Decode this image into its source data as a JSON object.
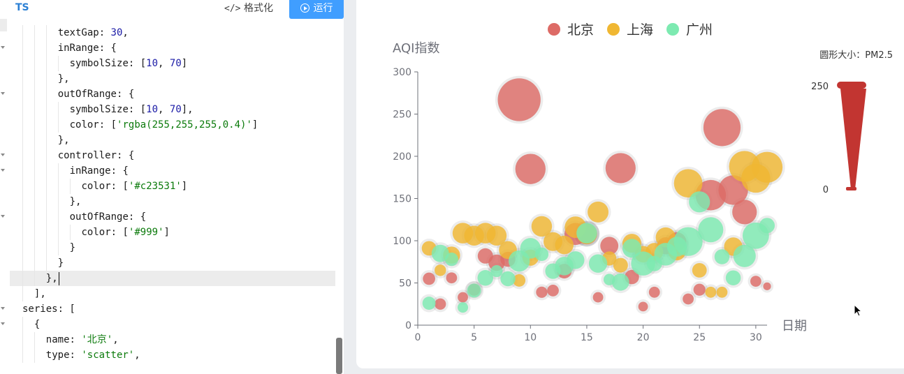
{
  "editor": {
    "language_label": "TS",
    "format_button": "格式化",
    "format_icon": "code-brackets-icon",
    "run_button": "运行",
    "run_icon": "play-circle-icon",
    "lines": [
      {
        "indent": 2,
        "fold": false,
        "tokens": [
          [
            "k",
            "textGap: "
          ],
          [
            "n",
            "30"
          ],
          [
            "k",
            ","
          ]
        ]
      },
      {
        "indent": 2,
        "fold": true,
        "tokens": [
          [
            "k",
            "inRange: {"
          ]
        ]
      },
      {
        "indent": 3,
        "fold": false,
        "tokens": [
          [
            "k",
            "symbolSize: ["
          ],
          [
            "n",
            "10"
          ],
          [
            "k",
            ", "
          ],
          [
            "n",
            "70"
          ],
          [
            "k",
            "]"
          ]
        ]
      },
      {
        "indent": 2,
        "fold": false,
        "tokens": [
          [
            "k",
            "},"
          ]
        ]
      },
      {
        "indent": 2,
        "fold": true,
        "tokens": [
          [
            "k",
            "outOfRange: {"
          ]
        ]
      },
      {
        "indent": 3,
        "fold": false,
        "tokens": [
          [
            "k",
            "symbolSize: ["
          ],
          [
            "n",
            "10"
          ],
          [
            "k",
            ", "
          ],
          [
            "n",
            "70"
          ],
          [
            "k",
            "],"
          ]
        ]
      },
      {
        "indent": 3,
        "fold": false,
        "tokens": [
          [
            "k",
            "color: ["
          ],
          [
            "s",
            "'rgba(255,255,255,0.4)'"
          ],
          [
            "k",
            "]"
          ]
        ]
      },
      {
        "indent": 2,
        "fold": false,
        "tokens": [
          [
            "k",
            "},"
          ]
        ]
      },
      {
        "indent": 2,
        "fold": true,
        "tokens": [
          [
            "k",
            "controller: {"
          ]
        ]
      },
      {
        "indent": 3,
        "fold": true,
        "tokens": [
          [
            "k",
            "inRange: {"
          ]
        ]
      },
      {
        "indent": 4,
        "fold": false,
        "tokens": [
          [
            "k",
            "color: ["
          ],
          [
            "s",
            "'#c23531'"
          ],
          [
            "k",
            "]"
          ]
        ]
      },
      {
        "indent": 3,
        "fold": false,
        "tokens": [
          [
            "k",
            "},"
          ]
        ]
      },
      {
        "indent": 3,
        "fold": true,
        "tokens": [
          [
            "k",
            "outOfRange: {"
          ]
        ]
      },
      {
        "indent": 4,
        "fold": false,
        "tokens": [
          [
            "k",
            "color: ["
          ],
          [
            "s",
            "'#999'"
          ],
          [
            "k",
            "]"
          ]
        ]
      },
      {
        "indent": 3,
        "fold": false,
        "tokens": [
          [
            "k",
            "}"
          ]
        ]
      },
      {
        "indent": 2,
        "fold": false,
        "tokens": [
          [
            "k",
            "}"
          ]
        ]
      },
      {
        "indent": 1,
        "fold": false,
        "active": true,
        "tokens": [
          [
            "k",
            "},"
          ]
        ]
      },
      {
        "indent": 0,
        "fold": false,
        "tokens": [
          [
            "k",
            "],"
          ]
        ]
      },
      {
        "indent": -1,
        "fold": true,
        "tokens": [
          [
            "k",
            "series: ["
          ]
        ]
      },
      {
        "indent": 0,
        "fold": true,
        "tokens": [
          [
            "k",
            "{"
          ]
        ]
      },
      {
        "indent": 1,
        "fold": false,
        "tokens": [
          [
            "k",
            "name: "
          ],
          [
            "s",
            "'北京'"
          ],
          [
            "k",
            ","
          ]
        ]
      },
      {
        "indent": 1,
        "fold": false,
        "tokens": [
          [
            "k",
            "type: "
          ],
          [
            "s",
            "'scatter'"
          ],
          [
            "k",
            ","
          ]
        ]
      }
    ]
  },
  "chart_data": {
    "type": "scatter",
    "title": "",
    "xlabel": "日期",
    "ylabel": "AQI指数",
    "xlim": [
      0,
      31
    ],
    "ylim": [
      0,
      300
    ],
    "xticks": [
      0,
      5,
      10,
      15,
      20,
      25,
      30
    ],
    "yticks": [
      0,
      50,
      100,
      150,
      200,
      250,
      300
    ],
    "legend_position": "top-center",
    "visual_map": {
      "label": "圆形大小：PM2.5",
      "max_label": "250",
      "min_label": "0",
      "color": "#c23531",
      "range": [
        0,
        250
      ]
    },
    "series": [
      {
        "name": "北京",
        "color": "#dd6b66",
        "points": [
          [
            1,
            55,
            32
          ],
          [
            2,
            25,
            26
          ],
          [
            3,
            56,
            24
          ],
          [
            4,
            33,
            20
          ],
          [
            5,
            42,
            30
          ],
          [
            6,
            82,
            50
          ],
          [
            7,
            74,
            56
          ],
          [
            8,
            78,
            48
          ],
          [
            9,
            267,
            214
          ],
          [
            10,
            185,
            139
          ],
          [
            11,
            39,
            26
          ],
          [
            12,
            41,
            28
          ],
          [
            13,
            64,
            46
          ],
          [
            14,
            108,
            90
          ],
          [
            15,
            108,
            82
          ],
          [
            16,
            33,
            20
          ],
          [
            17,
            94,
            66
          ],
          [
            18,
            186,
            138
          ],
          [
            19,
            57,
            44
          ],
          [
            20,
            22,
            16
          ],
          [
            21,
            39,
            24
          ],
          [
            22,
            94,
            60
          ],
          [
            23,
            99,
            70
          ],
          [
            24,
            31,
            24
          ],
          [
            25,
            42,
            30
          ],
          [
            26,
            154,
            140
          ],
          [
            27,
            234,
            180
          ],
          [
            28,
            160,
            135
          ],
          [
            29,
            134,
            105
          ],
          [
            30,
            52,
            24
          ],
          [
            31,
            46,
            5
          ]
        ]
      },
      {
        "name": "上海",
        "color": "#f0b732",
        "points": [
          [
            1,
            91,
            45
          ],
          [
            2,
            65,
            27
          ],
          [
            3,
            83,
            60
          ],
          [
            4,
            109,
            81
          ],
          [
            5,
            106,
            77
          ],
          [
            6,
            109,
            81
          ],
          [
            7,
            106,
            77
          ],
          [
            8,
            89,
            65
          ],
          [
            9,
            53,
            33
          ],
          [
            10,
            80,
            55
          ],
          [
            11,
            117,
            81
          ],
          [
            12,
            99,
            71
          ],
          [
            13,
            95,
            69
          ],
          [
            14,
            116,
            87
          ],
          [
            15,
            108,
            80
          ],
          [
            16,
            134,
            83
          ],
          [
            17,
            79,
            43
          ],
          [
            18,
            71,
            46
          ],
          [
            19,
            97,
            71
          ],
          [
            20,
            84,
            57
          ],
          [
            21,
            87,
            63
          ],
          [
            22,
            104,
            77
          ],
          [
            23,
            87,
            62
          ],
          [
            24,
            168,
            128
          ],
          [
            25,
            65,
            45
          ],
          [
            26,
            39,
            24
          ],
          [
            27,
            39,
            24
          ],
          [
            28,
            93,
            68
          ],
          [
            29,
            188,
            143
          ],
          [
            30,
            174,
            131
          ],
          [
            31,
            187,
            143
          ]
        ]
      },
      {
        "name": "广州",
        "color": "#7deab1",
        "points": [
          [
            1,
            26,
            37
          ],
          [
            2,
            85,
            62
          ],
          [
            3,
            78,
            38
          ],
          [
            4,
            21,
            21
          ],
          [
            5,
            41,
            42
          ],
          [
            6,
            56,
            52
          ],
          [
            7,
            64,
            30
          ],
          [
            8,
            55,
            48
          ],
          [
            9,
            76,
            85
          ],
          [
            10,
            91,
            81
          ],
          [
            11,
            84,
            39
          ],
          [
            12,
            64,
            51
          ],
          [
            13,
            70,
            69
          ],
          [
            14,
            77,
            64
          ],
          [
            15,
            109,
            81
          ],
          [
            16,
            73,
            68
          ],
          [
            17,
            54,
            27
          ],
          [
            18,
            51,
            61
          ],
          [
            19,
            91,
            71
          ],
          [
            20,
            73,
            102
          ],
          [
            21,
            73,
            50
          ],
          [
            22,
            84,
            94
          ],
          [
            23,
            93,
            77
          ],
          [
            24,
            99,
            130
          ],
          [
            25,
            146,
            84
          ],
          [
            26,
            113,
            108
          ],
          [
            27,
            81,
            48
          ],
          [
            28,
            56,
            48
          ],
          [
            29,
            82,
            92
          ],
          [
            30,
            106,
            116
          ],
          [
            31,
            118,
            50
          ]
        ]
      }
    ]
  }
}
